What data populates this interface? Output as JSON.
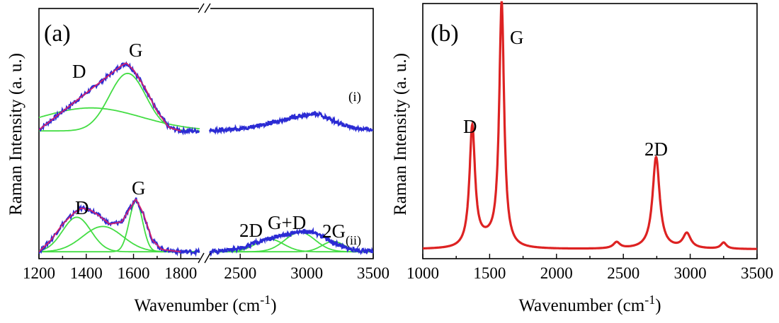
{
  "chart_data": [
    {
      "panel": "(a)",
      "type": "line",
      "xlabel": "Wavenumber (cm",
      "xlabel_sup": "-1",
      "xlabel_close": ")",
      "ylabel": "Raman Intensity (a. u.)",
      "x_axis_broken": true,
      "x_segments": [
        {
          "xlim": [
            1200,
            1880
          ],
          "ticks": [
            1200,
            1400,
            1600,
            1800
          ]
        },
        {
          "xlim": [
            2270,
            3500
          ],
          "ticks": [
            2500,
            3000,
            3500
          ]
        }
      ],
      "tick_labels": [
        "1200",
        "1400",
        "1600",
        "1800",
        "2500",
        "3000",
        "3500"
      ],
      "ylim": [
        0,
        1
      ],
      "colors": {
        "measured": "#2b2bd4",
        "fit_total": "#d0206e",
        "fit_components": "#44dd44"
      },
      "series": [
        {
          "name": "(i)",
          "label": "(i)",
          "x": [
            1200,
            1250,
            1300,
            1350,
            1400,
            1450,
            1500,
            1550,
            1570,
            1600,
            1650,
            1700,
            1750,
            1800,
            1850,
            1880,
            2270,
            2400,
            2500,
            2600,
            2700,
            2800,
            2900,
            3000,
            3050,
            3100,
            3200,
            3300,
            3400,
            3500
          ],
          "y": [
            0.56,
            0.6,
            0.64,
            0.68,
            0.72,
            0.76,
            0.8,
            0.84,
            0.85,
            0.82,
            0.74,
            0.64,
            0.57,
            0.555,
            0.555,
            0.555,
            0.555,
            0.56,
            0.565,
            0.575,
            0.585,
            0.6,
            0.615,
            0.625,
            0.63,
            0.625,
            0.6,
            0.575,
            0.565,
            0.56
          ],
          "peaks": [
            {
              "name": "D",
              "x": 1400,
              "y": 0.77
            },
            {
              "name": "G",
              "x": 1570,
              "y": 0.87
            }
          ]
        },
        {
          "name": "(ii)",
          "label": "(ii)",
          "x": [
            1200,
            1250,
            1300,
            1350,
            1380,
            1420,
            1450,
            1500,
            1550,
            1580,
            1610,
            1640,
            1680,
            1720,
            1800,
            1880,
            2270,
            2400,
            2500,
            2600,
            2700,
            2800,
            2900,
            2950,
            3000,
            3050,
            3100,
            3150,
            3200,
            3300,
            3400,
            3500
          ],
          "y": [
            0.03,
            0.08,
            0.15,
            0.2,
            0.22,
            0.21,
            0.19,
            0.15,
            0.16,
            0.21,
            0.26,
            0.2,
            0.08,
            0.04,
            0.03,
            0.03,
            0.03,
            0.035,
            0.045,
            0.065,
            0.085,
            0.1,
            0.11,
            0.12,
            0.12,
            0.115,
            0.1,
            0.085,
            0.07,
            0.045,
            0.035,
            0.03
          ],
          "peaks": [
            {
              "name": "D",
              "x": 1380,
              "y": 0.24
            },
            {
              "name": "G",
              "x": 1610,
              "y": 0.28
            },
            {
              "name": "2D",
              "x": 2700,
              "y": 0.1
            },
            {
              "name": "G+D",
              "x": 2950,
              "y": 0.13
            },
            {
              "name": "2G",
              "x": 3200,
              "y": 0.08
            }
          ]
        }
      ],
      "fit_components": [
        {
          "series": "(i)",
          "center": 1420,
          "width": 300,
          "amplitude": 0.1,
          "baseline": 0.555
        },
        {
          "series": "(i)",
          "center": 1575,
          "width": 110,
          "amplitude": 0.25,
          "baseline": 0.555
        },
        {
          "series": "(ii)",
          "center": 1360,
          "width": 85,
          "amplitude": 0.15,
          "baseline": 0.03
        },
        {
          "series": "(ii)",
          "center": 1470,
          "width": 120,
          "amplitude": 0.11,
          "baseline": 0.03
        },
        {
          "series": "(ii)",
          "center": 1610,
          "width": 40,
          "amplitude": 0.22,
          "baseline": 0.03
        },
        {
          "series": "(ii)",
          "center": 2720,
          "width": 150,
          "amplitude": 0.055,
          "baseline": 0.03
        },
        {
          "series": "(ii)",
          "center": 2950,
          "width": 160,
          "amplitude": 0.085,
          "baseline": 0.03
        },
        {
          "series": "(ii)",
          "center": 3200,
          "width": 120,
          "amplitude": 0.045,
          "baseline": 0.03
        }
      ],
      "annotations": [
        "D",
        "G",
        "(i)",
        "D",
        "G",
        "2D",
        "G+D",
        "2G",
        "(ii)"
      ]
    },
    {
      "panel": "(b)",
      "type": "line",
      "xlabel": "Wavenumber (cm",
      "xlabel_sup": "-1",
      "xlabel_close": ")",
      "ylabel": "Raman Intensity (a. u.)",
      "xlim": [
        1000,
        3500
      ],
      "xticks": [
        1000,
        1500,
        2000,
        2500,
        3000,
        3500
      ],
      "tick_labels": [
        "1000",
        "1500",
        "2000",
        "2500",
        "3000",
        "3500"
      ],
      "ylim": [
        0,
        1
      ],
      "color": "#dd2222",
      "grid": false,
      "peaks": [
        {
          "name": "D",
          "center": 1370,
          "width": 25,
          "height": 0.48
        },
        {
          "name": "G",
          "center": 1590,
          "width": 22,
          "height": 0.98
        },
        {
          "name": "2D",
          "center": 2745,
          "width": 32,
          "height": 0.37
        },
        {
          "name": "",
          "center": 2450,
          "width": 30,
          "height": 0.025
        },
        {
          "name": "",
          "center": 2975,
          "width": 35,
          "height": 0.06
        },
        {
          "name": "",
          "center": 3250,
          "width": 25,
          "height": 0.025
        }
      ],
      "baseline": 0.015,
      "annotations": [
        "D",
        "G",
        "2D"
      ]
    }
  ]
}
